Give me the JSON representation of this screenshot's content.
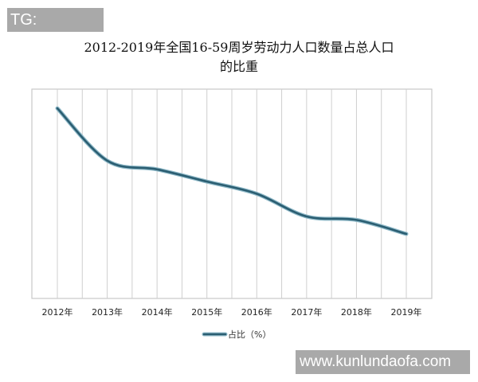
{
  "watermarks": {
    "top_left": "TG: MYYJJPP",
    "bottom_right": "www.kunlundaofa.com"
  },
  "chart_data": {
    "type": "line",
    "title_line1": "2012-2019年全国16-59周岁劳动力人口数量占总人口",
    "title_line2": "的比重",
    "categories": [
      "2012年",
      "2013年",
      "2014年",
      "2015年",
      "2016年",
      "2017年",
      "2018年",
      "2019年"
    ],
    "series": [
      {
        "name": "占比（%）",
        "values": [
          70.9,
          67.9,
          67.4,
          66.7,
          66.0,
          64.7,
          64.5,
          63.7
        ],
        "color": "#2b5e72"
      }
    ],
    "ylim": [
      60,
      72
    ],
    "y_ticks_shown": false,
    "grid": "vertical",
    "smooth": true,
    "legend_position": "bottom",
    "xlabel": "",
    "ylabel": ""
  }
}
